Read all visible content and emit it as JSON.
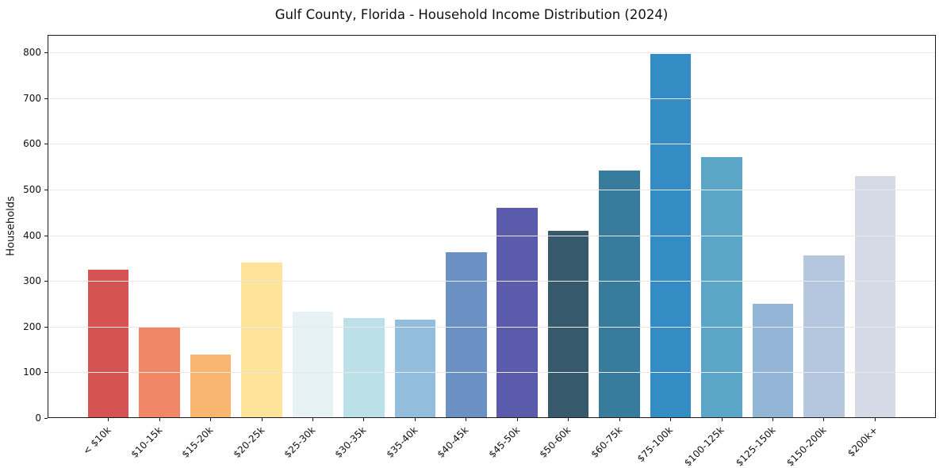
{
  "chart_data": {
    "type": "bar",
    "title": "Gulf County, Florida - Household Income Distribution (2024)",
    "xlabel": "",
    "ylabel": "Households",
    "categories": [
      "< $10k",
      "$10-15k",
      "$15-20k",
      "$20-25k",
      "$25-30k",
      "$30-35k",
      "$35-40k",
      "$40-45k",
      "$45-50k",
      "$50-60k",
      "$60-75k",
      "$75-100k",
      "$100-125k",
      "$125-150k",
      "$150-200k",
      "$200k+"
    ],
    "values": [
      325,
      197,
      138,
      340,
      233,
      218,
      216,
      362,
      459,
      410,
      542,
      797,
      571,
      250,
      356,
      529
    ],
    "bar_colors": [
      "#d65353",
      "#f28767",
      "#f9b671",
      "#fde49a",
      "#e7f2f5",
      "#bce0e8",
      "#92bddd",
      "#6b91c4",
      "#5a5cab",
      "#36596b",
      "#377c9d",
      "#338dc4",
      "#5ba5c7",
      "#94b6d6",
      "#b4c7df",
      "#d6d9e6"
    ],
    "yticks": [
      0,
      100,
      200,
      300,
      400,
      500,
      600,
      700,
      800
    ],
    "ylim": [
      0,
      838
    ],
    "grid": "horizontal-over-bars",
    "grid_color": "#e8e8e8",
    "background_color": "#ffffff",
    "frame_color": "#1a1a1a",
    "legend": "none"
  }
}
